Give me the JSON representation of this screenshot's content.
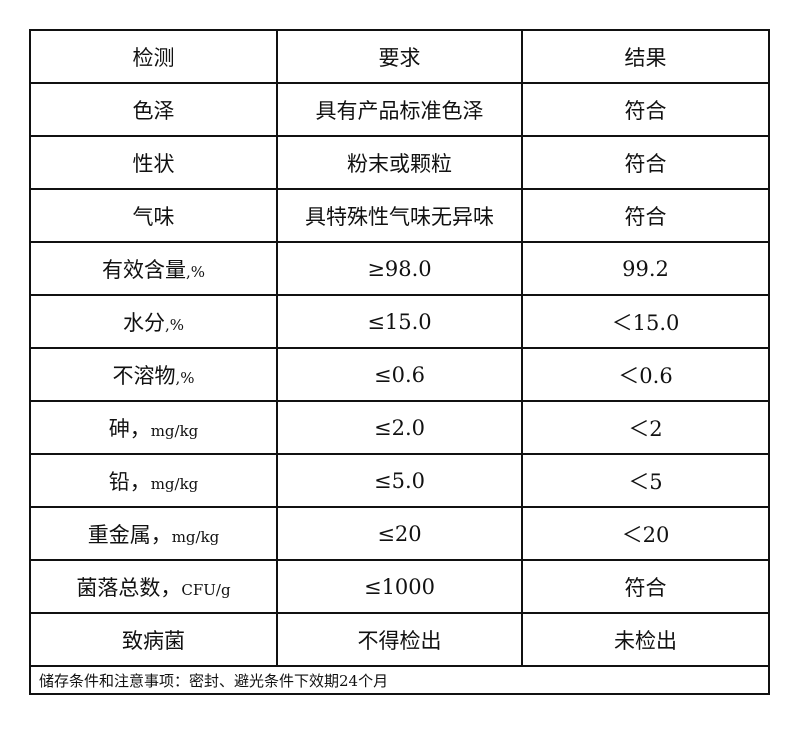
{
  "header": [
    "检测",
    "要求",
    "结果"
  ],
  "rows": [
    {
      "item": "色泽",
      "unit": "",
      "requirement": "具有产品标准色泽",
      "result": "符合"
    },
    {
      "item": "性状",
      "unit": "",
      "requirement": "粉末或颗粒",
      "result": "符合"
    },
    {
      "item": "气味",
      "unit": "",
      "requirement": "具特殊性气味无异味",
      "result": "符合"
    },
    {
      "item": "有效含量",
      "unit": ",%",
      "requirement": "≥98.0",
      "result": "99.2"
    },
    {
      "item": "水分",
      "unit": ",%",
      "requirement": "≤15.0",
      "result": "＜15.0"
    },
    {
      "item": "不溶物",
      "unit": ",%",
      "requirement": "≤0.6",
      "result": "＜0.6"
    },
    {
      "item": "砷，",
      "unit": "mg/kg",
      "requirement": "≤2.0",
      "result": "＜2"
    },
    {
      "item": "铅，",
      "unit": "mg/kg",
      "requirement": "≤5.0",
      "result": "＜5"
    },
    {
      "item": "重金属，",
      "unit": "mg/kg",
      "requirement": "≤20",
      "result": "＜20"
    },
    {
      "item": "菌落总数，",
      "unit": "CFU/g",
      "requirement": "≤1000",
      "result": "符合"
    },
    {
      "item": "致病菌",
      "unit": "",
      "requirement": "不得检出",
      "result": "未检出"
    }
  ],
  "note": "储存条件和注意事项：密封、避光条件下效期24个月"
}
